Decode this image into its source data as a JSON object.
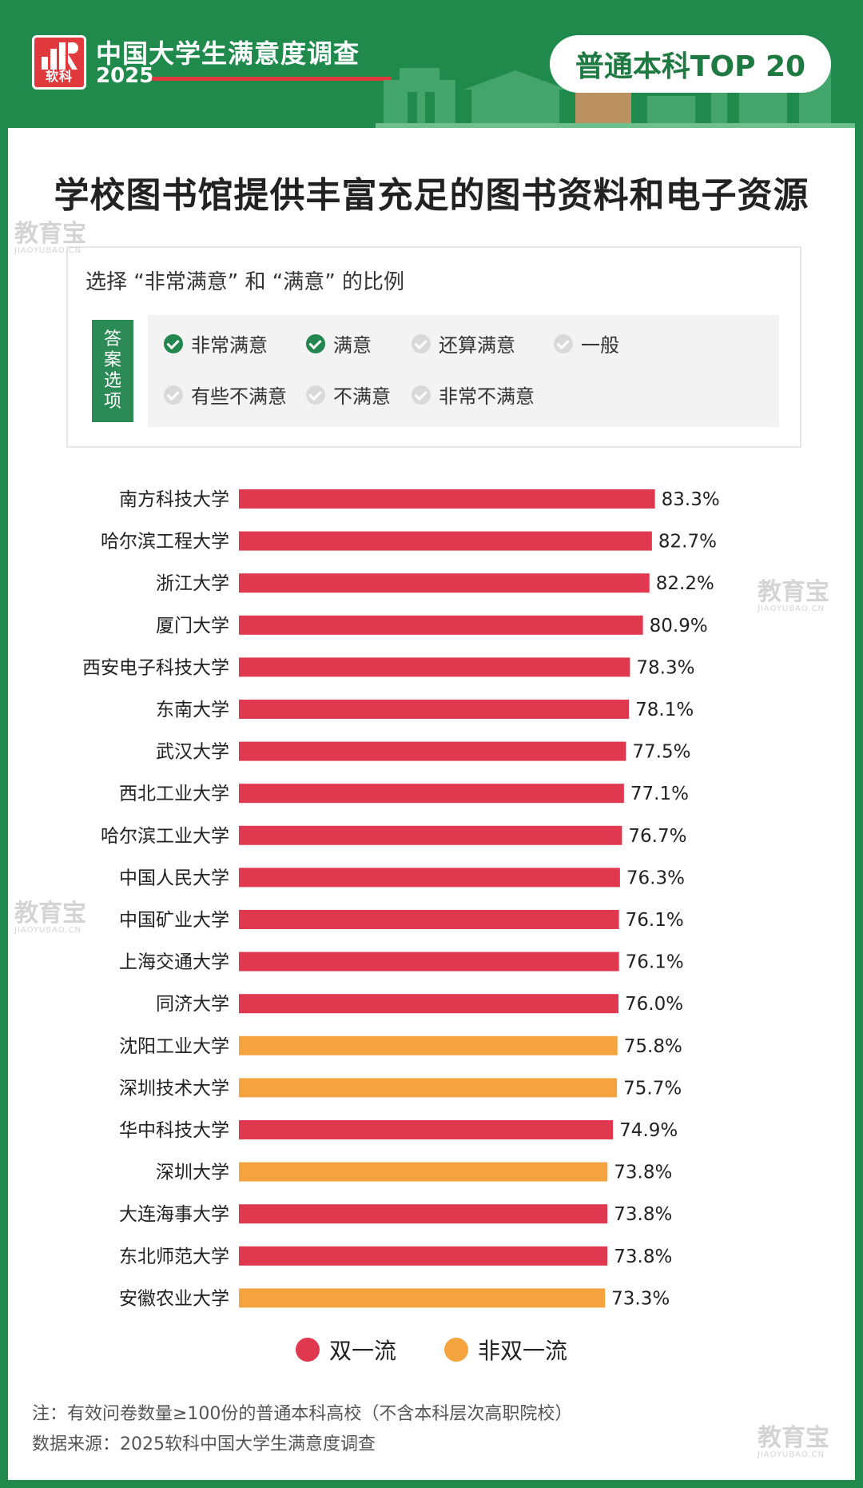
{
  "header": {
    "logo_text": "软科",
    "survey_title": "中国大学生满意度调查",
    "survey_year": "2025",
    "badge": "普通本科TOP 20"
  },
  "main_title": "学校图书馆提供丰富充足的图书资料和电子资源",
  "options": {
    "subtitle": "选择 “非常满意” 和 “满意” 的比例",
    "label_chars": [
      "答",
      "案",
      "选",
      "项"
    ],
    "items": [
      {
        "label": "非常满意",
        "selected": true
      },
      {
        "label": "满意",
        "selected": true
      },
      {
        "label": "还算满意",
        "selected": false
      },
      {
        "label": "一般",
        "selected": false
      },
      {
        "label": "有些不满意",
        "selected": false
      },
      {
        "label": "不满意",
        "selected": false
      },
      {
        "label": "非常不满意",
        "selected": false
      }
    ]
  },
  "colors": {
    "brand_green": "#1f8a4c",
    "double_first_class": "#e0384f",
    "non_double_first_class": "#f5a33e"
  },
  "chart_data": {
    "type": "bar",
    "orientation": "horizontal",
    "categories": [
      "南方科技大学",
      "哈尔滨工程大学",
      "浙江大学",
      "厦门大学",
      "西安电子科技大学",
      "东南大学",
      "武汉大学",
      "西北工业大学",
      "哈尔滨工业大学",
      "中国人民大学",
      "中国矿业大学",
      "上海交通大学",
      "同济大学",
      "沈阳工业大学",
      "深圳技术大学",
      "华中科技大学",
      "深圳大学",
      "大连海事大学",
      "东北师范大学",
      "安徽农业大学"
    ],
    "values": [
      83.3,
      82.7,
      82.2,
      80.9,
      78.3,
      78.1,
      77.5,
      77.1,
      76.7,
      76.3,
      76.1,
      76.1,
      76.0,
      75.8,
      75.7,
      74.9,
      73.8,
      73.8,
      73.8,
      73.3
    ],
    "labels": [
      "83.3%",
      "82.7%",
      "82.2%",
      "80.9%",
      "78.3%",
      "78.1%",
      "77.5%",
      "77.1%",
      "76.7%",
      "76.3%",
      "76.1%",
      "76.1%",
      "76.0%",
      "75.8%",
      "75.7%",
      "74.9%",
      "73.8%",
      "73.8%",
      "73.8%",
      "73.3%"
    ],
    "groups": [
      "双一流",
      "双一流",
      "双一流",
      "双一流",
      "双一流",
      "双一流",
      "双一流",
      "双一流",
      "双一流",
      "双一流",
      "双一流",
      "双一流",
      "双一流",
      "非双一流",
      "非双一流",
      "双一流",
      "非双一流",
      "双一流",
      "双一流",
      "非双一流"
    ],
    "legend": [
      "双一流",
      "非双一流"
    ],
    "legend_placement": "bottom-center",
    "unit": "%",
    "grid": false
  },
  "notes": {
    "note1": "注：有效问卷数量≥100份的普通本科高校（不含本科层次高职院校）",
    "note2": "数据来源：2025软科中国大学生满意度调查"
  },
  "watermark": {
    "text": "教育宝",
    "sub": "JIAOYUBAO.CN"
  }
}
